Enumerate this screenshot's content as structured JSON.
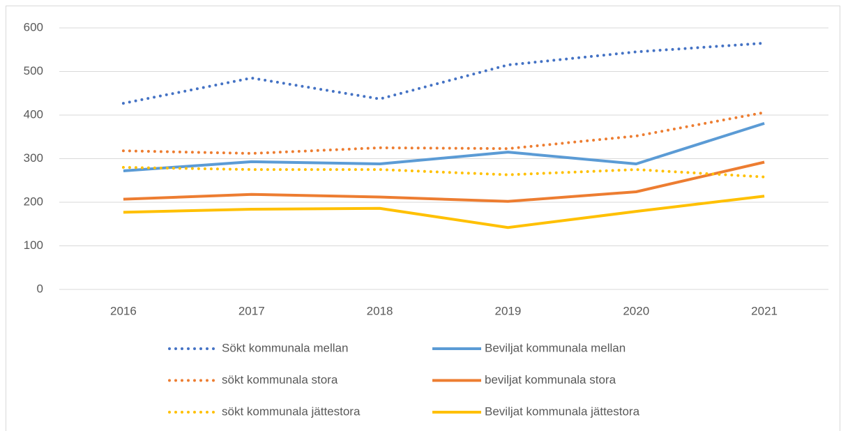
{
  "chart_data": {
    "type": "line",
    "categories": [
      "2016",
      "2017",
      "2018",
      "2019",
      "2020",
      "2021"
    ],
    "series": [
      {
        "name": "Sökt kommunala mellan",
        "color": "#4472c4",
        "dash": "dotted",
        "values": [
          427,
          485,
          437,
          515,
          545,
          565
        ]
      },
      {
        "name": "Beviljat kommunala mellan",
        "color": "#5b9bd5",
        "dash": "solid",
        "values": [
          272,
          293,
          288,
          315,
          288,
          381
        ]
      },
      {
        "name": "sökt kommunala stora",
        "color": "#ed7d31",
        "dash": "dotted",
        "values": [
          318,
          312,
          325,
          323,
          352,
          406
        ]
      },
      {
        "name": "beviljat kommunala stora",
        "color": "#ed7d31",
        "dash": "solid",
        "values": [
          207,
          218,
          212,
          202,
          224,
          292
        ]
      },
      {
        "name": "sökt kommunala jättestora",
        "color": "#ffc000",
        "dash": "dotted",
        "values": [
          280,
          275,
          275,
          263,
          275,
          258
        ]
      },
      {
        "name": "Beviljat kommunala jättestora",
        "color": "#ffc000",
        "dash": "solid",
        "values": [
          177,
          184,
          186,
          142,
          179,
          214
        ]
      }
    ],
    "ylim": [
      0,
      600
    ],
    "yticks": [
      0,
      100,
      200,
      300,
      400,
      500,
      600
    ],
    "grid": true,
    "legend": "bottom"
  }
}
